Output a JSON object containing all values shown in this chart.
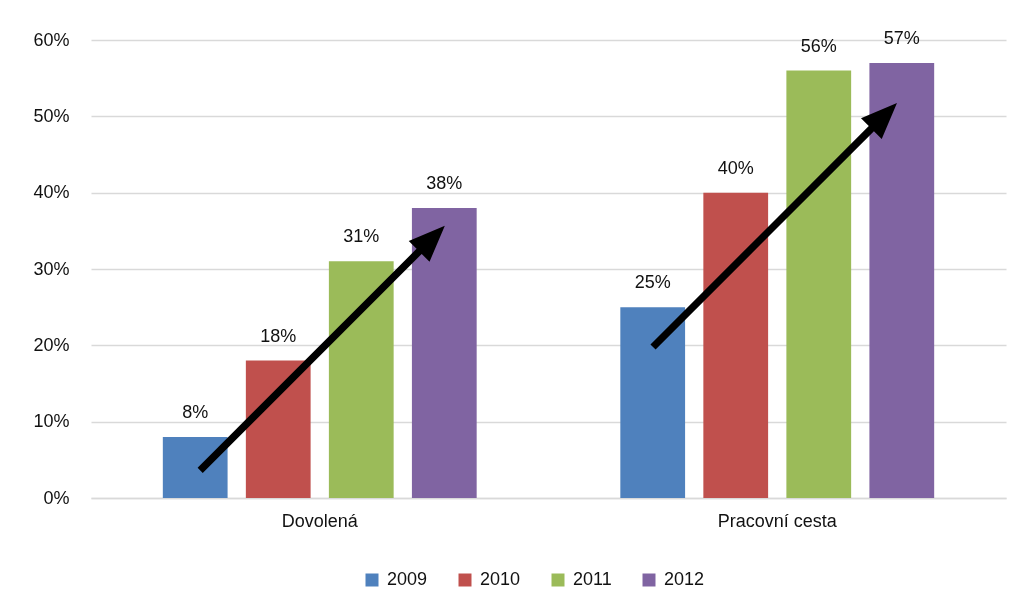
{
  "chart_data": {
    "type": "bar",
    "categories": [
      "Dovolená",
      "Pracovní cesta"
    ],
    "series": [
      {
        "name": "2009",
        "color": "#4f81bd",
        "values": [
          8,
          25
        ],
        "value_labels": [
          "8%",
          "25%"
        ]
      },
      {
        "name": "2010",
        "color": "#c0504d",
        "values": [
          18,
          40
        ],
        "value_labels": [
          "18%",
          "40%"
        ]
      },
      {
        "name": "2011",
        "color": "#9bbb59",
        "values": [
          31,
          56
        ],
        "value_labels": [
          "31%",
          "56%"
        ]
      },
      {
        "name": "2012",
        "color": "#8064a2",
        "values": [
          38,
          57
        ],
        "value_labels": [
          "38%",
          "57%"
        ]
      }
    ],
    "ylim": [
      0,
      60
    ],
    "yticks": [
      {
        "value": 0,
        "label": "0%"
      },
      {
        "value": 10,
        "label": "10%"
      },
      {
        "value": 20,
        "label": "20%"
      },
      {
        "value": 30,
        "label": "30%"
      },
      {
        "value": 40,
        "label": "40%"
      },
      {
        "value": 50,
        "label": "50%"
      },
      {
        "value": 60,
        "label": "60%"
      }
    ],
    "grid": "y",
    "legend": "bottom"
  }
}
